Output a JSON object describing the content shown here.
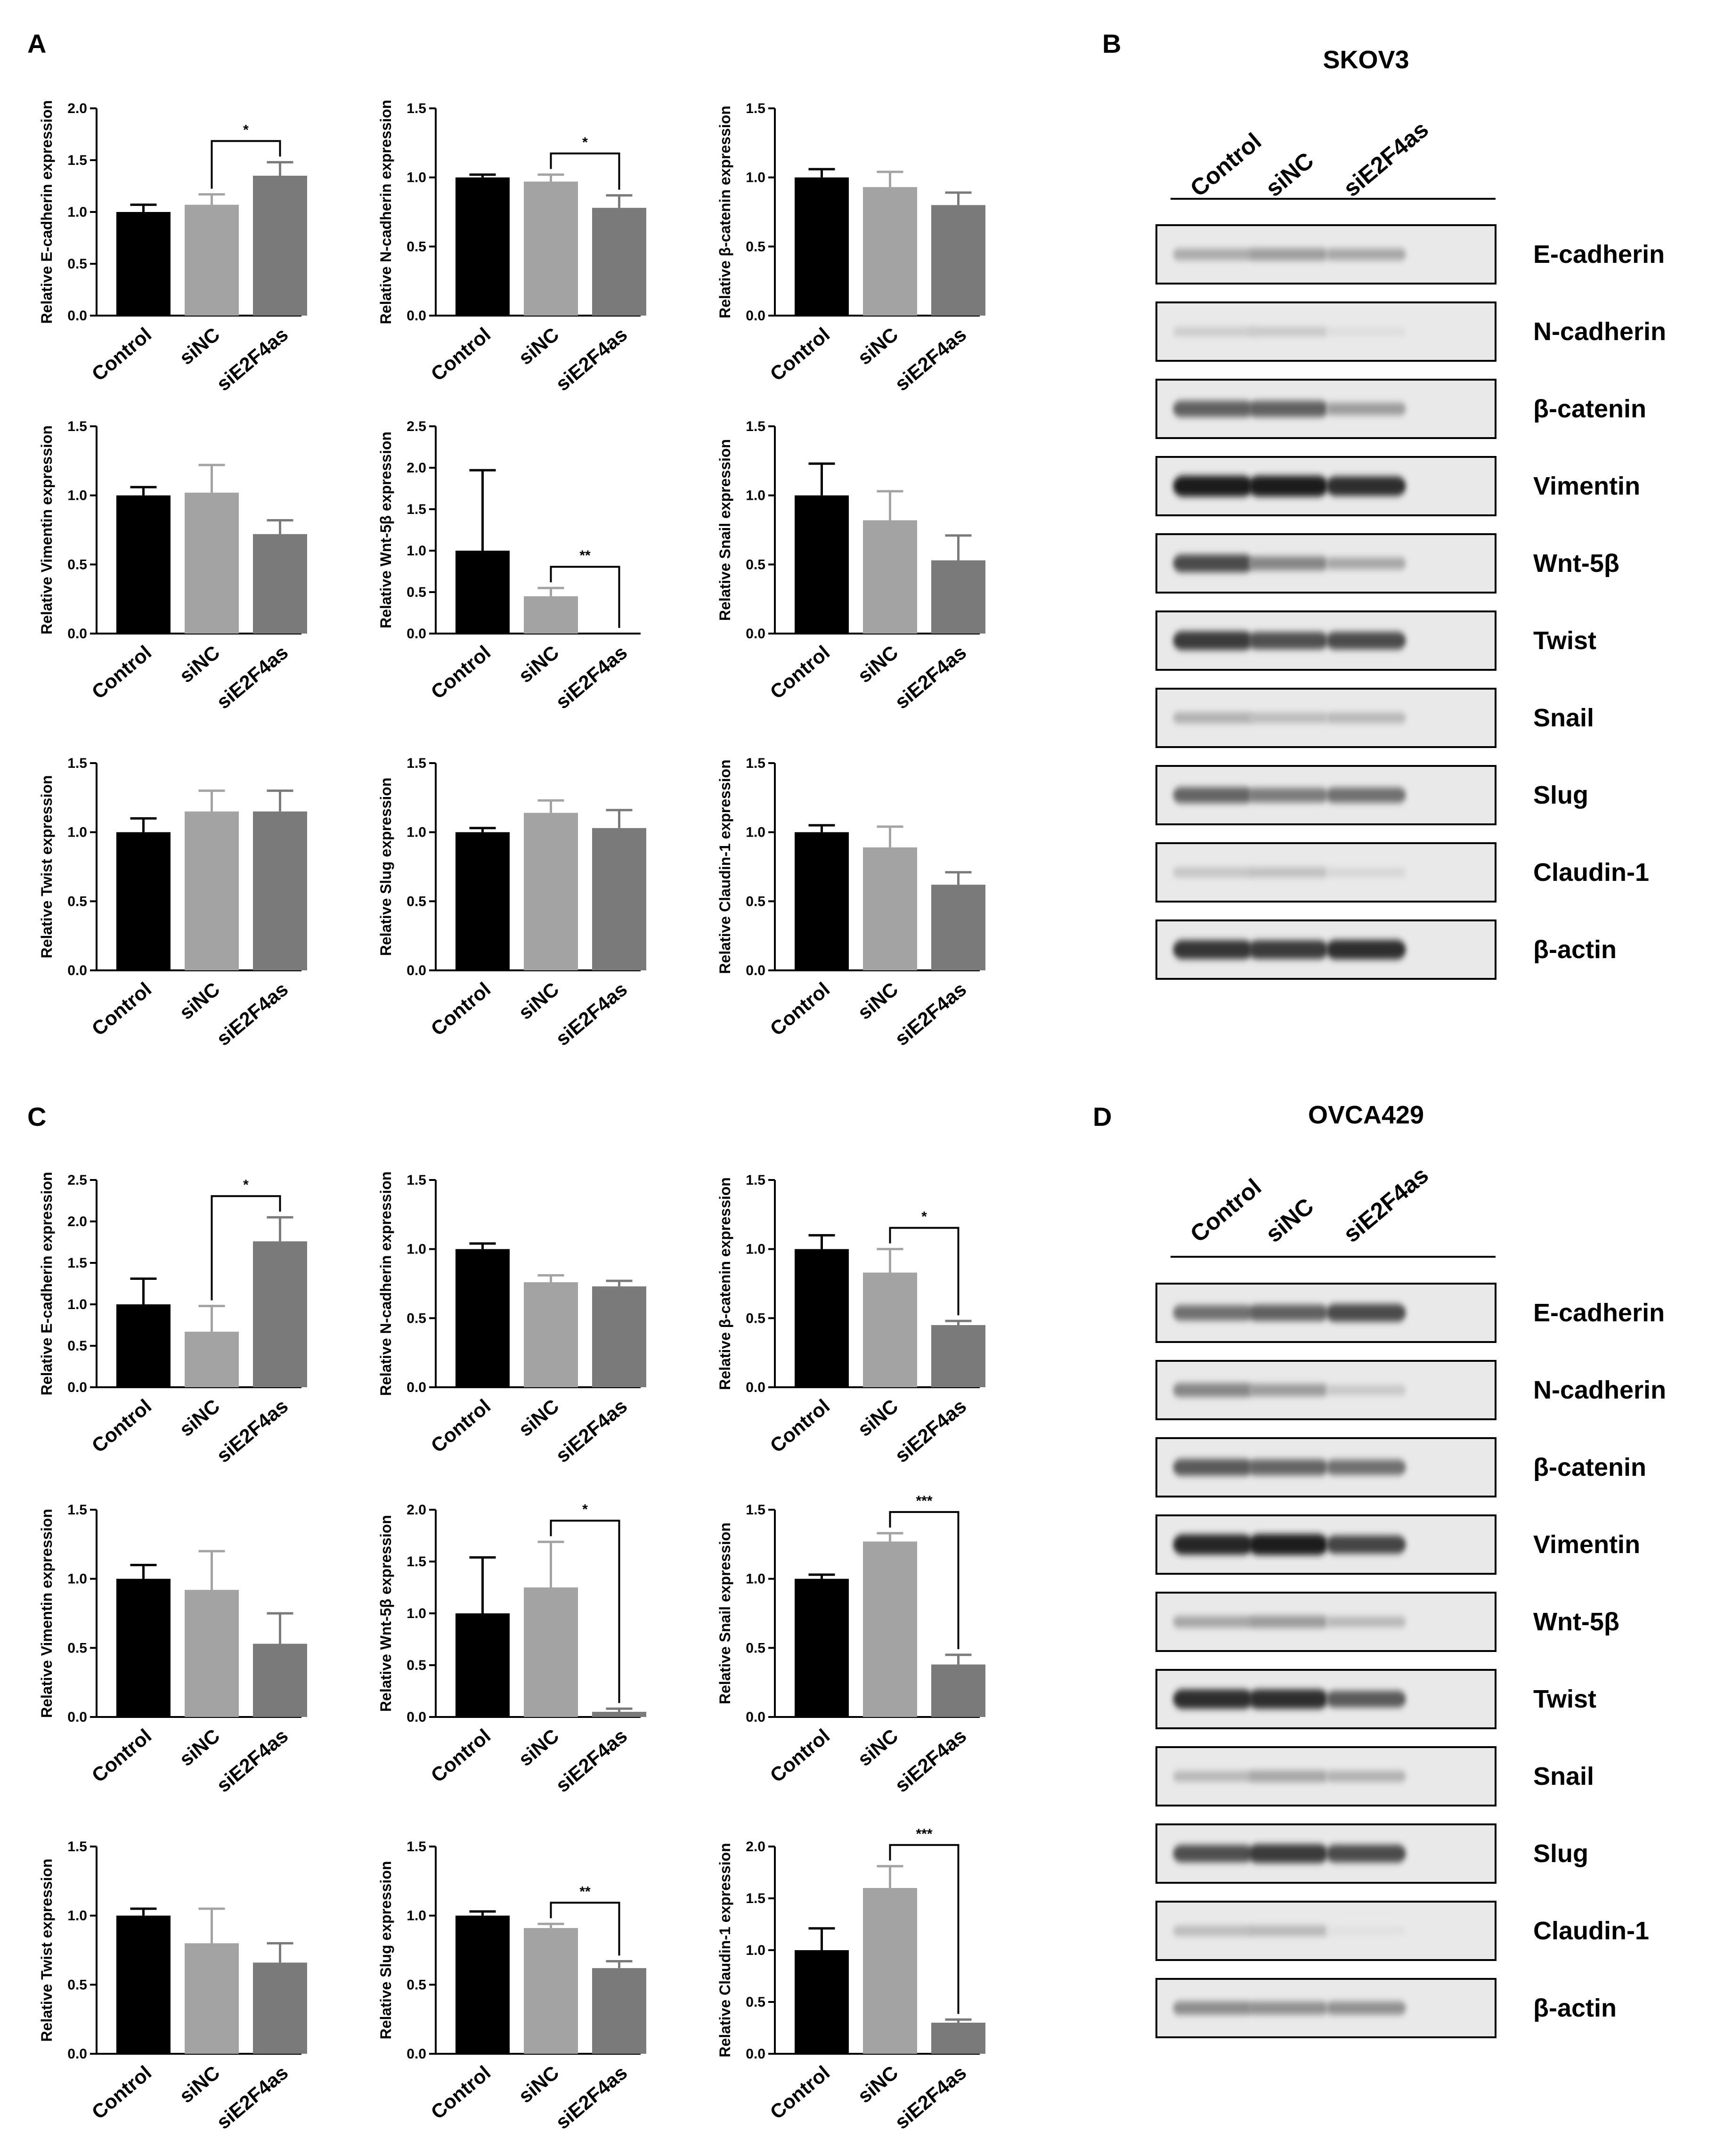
{
  "panels": {
    "A": {
      "letter": "A",
      "categories": [
        "Control",
        "siNC",
        "siE2F4as"
      ],
      "colors": [
        "#000000",
        "#a3a3a3",
        "#7a7a7a"
      ],
      "charts": [
        {
          "type": "bar",
          "ylabel": "Relative E-cadherin expression",
          "ylim": [
            0,
            2.0
          ],
          "ticks": [
            "0.0",
            "0.5",
            "1.0",
            "1.5",
            "2.0"
          ],
          "values": [
            1.0,
            1.07,
            1.35
          ],
          "errors": [
            0.07,
            0.1,
            0.13
          ],
          "sig": {
            "from": 1,
            "to": 2,
            "label": "*"
          }
        },
        {
          "type": "bar",
          "ylabel": "Relative N-cadherin expression",
          "ylim": [
            0,
            1.5
          ],
          "ticks": [
            "0.0",
            "0.5",
            "1.0",
            "1.5"
          ],
          "values": [
            1.0,
            0.97,
            0.78
          ],
          "errors": [
            0.02,
            0.05,
            0.09
          ],
          "sig": {
            "from": 1,
            "to": 2,
            "label": "*"
          }
        },
        {
          "type": "bar",
          "ylabel": "Relative β-catenin expression",
          "ylim": [
            0,
            1.5
          ],
          "ticks": [
            "0.0",
            "0.5",
            "1.0",
            "1.5"
          ],
          "values": [
            1.0,
            0.93,
            0.8
          ],
          "errors": [
            0.06,
            0.11,
            0.09
          ],
          "sig": null
        },
        {
          "type": "bar",
          "ylabel": "Relative Vimentin expression",
          "ylim": [
            0,
            1.5
          ],
          "ticks": [
            "0.0",
            "0.5",
            "1.0",
            "1.5"
          ],
          "values": [
            1.0,
            1.02,
            0.72
          ],
          "errors": [
            0.06,
            0.2,
            0.1
          ],
          "sig": null
        },
        {
          "type": "bar",
          "ylabel": "Relative Wnt-5β expression",
          "ylim": [
            0,
            2.5
          ],
          "ticks": [
            "0.0",
            "0.5",
            "1.0",
            "1.5",
            "2.0",
            "2.5"
          ],
          "values": [
            1.0,
            0.45,
            0.0
          ],
          "errors": [
            0.97,
            0.1,
            0.0
          ],
          "sig": {
            "from": 1,
            "to": 2,
            "label": "**"
          }
        },
        {
          "type": "bar",
          "ylabel": "Relative Snail expression",
          "ylim": [
            0,
            1.5
          ],
          "ticks": [
            "0.0",
            "0.5",
            "1.0",
            "1.5"
          ],
          "values": [
            1.0,
            0.82,
            0.53
          ],
          "errors": [
            0.23,
            0.21,
            0.18
          ],
          "sig": null
        },
        {
          "type": "bar",
          "ylabel": "Relative Twist expression",
          "ylim": [
            0,
            1.5
          ],
          "ticks": [
            "0.0",
            "0.5",
            "1.0",
            "1.5"
          ],
          "values": [
            1.0,
            1.15,
            1.15
          ],
          "errors": [
            0.1,
            0.15,
            0.15
          ],
          "sig": null
        },
        {
          "type": "bar",
          "ylabel": "Relative Slug expression",
          "ylim": [
            0,
            1.5
          ],
          "ticks": [
            "0.0",
            "0.5",
            "1.0",
            "1.5"
          ],
          "values": [
            1.0,
            1.14,
            1.03
          ],
          "errors": [
            0.03,
            0.09,
            0.13
          ],
          "sig": null
        },
        {
          "type": "bar",
          "ylabel": "Relative Claudin-1 expression",
          "ylim": [
            0,
            1.5
          ],
          "ticks": [
            "0.0",
            "0.5",
            "1.0",
            "1.5"
          ],
          "values": [
            1.0,
            0.89,
            0.62
          ],
          "errors": [
            0.05,
            0.15,
            0.09
          ],
          "sig": null
        }
      ]
    },
    "C": {
      "letter": "C",
      "categories": [
        "Control",
        "siNC",
        "siE2F4as"
      ],
      "colors": [
        "#000000",
        "#a3a3a3",
        "#7a7a7a"
      ],
      "charts": [
        {
          "type": "bar",
          "ylabel": "Relative E-cadherin expression",
          "ylim": [
            0,
            2.5
          ],
          "ticks": [
            "0.0",
            "0.5",
            "1.0",
            "1.5",
            "2.0",
            "2.5"
          ],
          "values": [
            1.0,
            0.67,
            1.76
          ],
          "errors": [
            0.31,
            0.31,
            0.29
          ],
          "sig": {
            "from": 1,
            "to": 2,
            "label": "*"
          }
        },
        {
          "type": "bar",
          "ylabel": "Relative N-cadherin expression",
          "ylim": [
            0,
            1.5
          ],
          "ticks": [
            "0.0",
            "0.5",
            "1.0",
            "1.5"
          ],
          "values": [
            1.0,
            0.76,
            0.73
          ],
          "errors": [
            0.04,
            0.05,
            0.04
          ],
          "sig": null
        },
        {
          "type": "bar",
          "ylabel": "Relative β-catenin expression",
          "ylim": [
            0,
            1.5
          ],
          "ticks": [
            "0.0",
            "0.5",
            "1.0",
            "1.5"
          ],
          "values": [
            1.0,
            0.83,
            0.45
          ],
          "errors": [
            0.1,
            0.17,
            0.03
          ],
          "sig": {
            "from": 1,
            "to": 2,
            "label": "*"
          }
        },
        {
          "type": "bar",
          "ylabel": "Relative Vimentin expression",
          "ylim": [
            0,
            1.5
          ],
          "ticks": [
            "0.0",
            "0.5",
            "1.0",
            "1.5"
          ],
          "values": [
            1.0,
            0.92,
            0.53
          ],
          "errors": [
            0.1,
            0.28,
            0.22
          ],
          "sig": null
        },
        {
          "type": "bar",
          "ylabel": "Relative Wnt-5β expression",
          "ylim": [
            0,
            2.0
          ],
          "ticks": [
            "0.0",
            "0.5",
            "1.0",
            "1.5",
            "2.0"
          ],
          "values": [
            1.0,
            1.25,
            0.05
          ],
          "errors": [
            0.54,
            0.44,
            0.03
          ],
          "sig": {
            "from": 1,
            "to": 2,
            "label": "*"
          }
        },
        {
          "type": "bar",
          "ylabel": "Relative Snail expression",
          "ylim": [
            0,
            1.5
          ],
          "ticks": [
            "0.0",
            "0.5",
            "1.0",
            "1.5"
          ],
          "values": [
            1.0,
            1.27,
            0.38
          ],
          "errors": [
            0.03,
            0.06,
            0.07
          ],
          "sig": {
            "from": 1,
            "to": 2,
            "label": "***"
          }
        },
        {
          "type": "bar",
          "ylabel": "Relative Twist expression",
          "ylim": [
            0,
            1.5
          ],
          "ticks": [
            "0.0",
            "0.5",
            "1.0",
            "1.5"
          ],
          "values": [
            1.0,
            0.8,
            0.66
          ],
          "errors": [
            0.05,
            0.25,
            0.14
          ],
          "sig": null
        },
        {
          "type": "bar",
          "ylabel": "Relative Slug expression",
          "ylim": [
            0,
            1.5
          ],
          "ticks": [
            "0.0",
            "0.5",
            "1.0",
            "1.5"
          ],
          "values": [
            1.0,
            0.91,
            0.62
          ],
          "errors": [
            0.03,
            0.03,
            0.05
          ],
          "sig": {
            "from": 1,
            "to": 2,
            "label": "**"
          }
        },
        {
          "type": "bar",
          "ylabel": "Relative Claudin-1 expression",
          "ylim": [
            0,
            2.0
          ],
          "ticks": [
            "0.0",
            "0.5",
            "1.0",
            "1.5",
            "2.0"
          ],
          "values": [
            1.0,
            1.6,
            0.3
          ],
          "errors": [
            0.21,
            0.21,
            0.03
          ],
          "sig": {
            "from": 1,
            "to": 2,
            "label": "***"
          }
        }
      ]
    },
    "B": {
      "letter": "B",
      "title": "SKOV3",
      "lanes": [
        "Control",
        "siNC",
        "siE2F4as"
      ],
      "blots": [
        {
          "protein": "E-cadherin",
          "intensity": [
            0.28,
            0.34,
            0.3
          ]
        },
        {
          "protein": "N-cadherin",
          "intensity": [
            0.12,
            0.14,
            0.04
          ]
        },
        {
          "protein": "β-catenin",
          "intensity": [
            0.62,
            0.62,
            0.35
          ]
        },
        {
          "protein": "Vimentin",
          "intensity": [
            0.95,
            0.95,
            0.85
          ]
        },
        {
          "protein": "Wnt-5β",
          "intensity": [
            0.72,
            0.45,
            0.3
          ]
        },
        {
          "protein": "Twist",
          "intensity": [
            0.8,
            0.7,
            0.72
          ]
        },
        {
          "protein": "Snail",
          "intensity": [
            0.25,
            0.2,
            0.22
          ]
        },
        {
          "protein": "Slug",
          "intensity": [
            0.6,
            0.5,
            0.55
          ]
        },
        {
          "protein": "Claudin-1",
          "intensity": [
            0.16,
            0.18,
            0.08
          ]
        },
        {
          "protein": "β-actin",
          "intensity": [
            0.82,
            0.8,
            0.85
          ]
        }
      ]
    },
    "D": {
      "letter": "D",
      "title": "OVCA429",
      "lanes": [
        "Control",
        "siNC",
        "siE2F4as"
      ],
      "blots": [
        {
          "protein": "E-cadherin",
          "intensity": [
            0.55,
            0.62,
            0.72
          ]
        },
        {
          "protein": "N-cadherin",
          "intensity": [
            0.45,
            0.35,
            0.15
          ]
        },
        {
          "protein": "β-catenin",
          "intensity": [
            0.65,
            0.6,
            0.55
          ]
        },
        {
          "protein": "Vimentin",
          "intensity": [
            0.9,
            0.95,
            0.75
          ]
        },
        {
          "protein": "Wnt-5β",
          "intensity": [
            0.3,
            0.35,
            0.22
          ]
        },
        {
          "protein": "Twist",
          "intensity": [
            0.85,
            0.85,
            0.65
          ]
        },
        {
          "protein": "Snail",
          "intensity": [
            0.22,
            0.3,
            0.25
          ]
        },
        {
          "protein": "Slug",
          "intensity": [
            0.7,
            0.8,
            0.72
          ]
        },
        {
          "protein": "Claudin-1",
          "intensity": [
            0.2,
            0.22,
            0.03
          ]
        },
        {
          "protein": "β-actin",
          "intensity": [
            0.42,
            0.4,
            0.4
          ]
        }
      ]
    }
  }
}
